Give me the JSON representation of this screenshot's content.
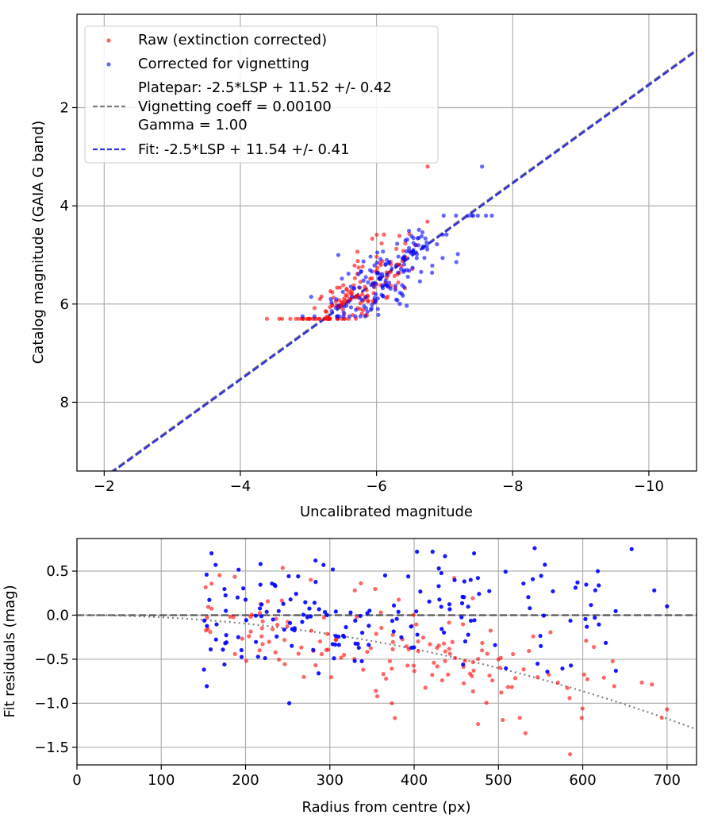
{
  "chart_data": [
    {
      "type": "scatter",
      "xlabel": "Uncalibrated magnitude",
      "ylabel": "Catalog magnitude (GAIA G band)",
      "xlim": [
        -1.6,
        -10.7
      ],
      "ylim": [
        9.4,
        0.1
      ],
      "x_ticks": [
        -2,
        -4,
        -6,
        -8,
        -10
      ],
      "x_tick_labels": [
        "−2",
        "−4",
        "−6",
        "−8",
        "−10"
      ],
      "y_ticks": [
        2,
        4,
        6,
        8
      ],
      "y_tick_labels": [
        "2",
        "4",
        "6",
        "8"
      ],
      "grid": true,
      "legend_position": "upper-left",
      "legend": [
        {
          "label": "Raw (extinction corrected)",
          "kind": "marker",
          "color": "#ff0000"
        },
        {
          "label": "Corrected for vignetting",
          "kind": "marker",
          "color": "#0000ff"
        },
        {
          "label": "Platepar: -2.5*LSP + 11.52 +/- 0.42",
          "label2": "Vignetting coeff = 0.00100",
          "label3": "Gamma = 1.00",
          "kind": "dashed",
          "color": "#808080"
        },
        {
          "label": "Fit: -2.5*LSP + 11.54 +/- 0.41",
          "kind": "dashed",
          "color": "#3333dd"
        }
      ],
      "lines": [
        {
          "name": "Platepar",
          "slope": 1.0,
          "intercept": 11.52,
          "color": "#808080",
          "style": "dashed"
        },
        {
          "name": "Fit",
          "slope": 1.0,
          "intercept": 11.54,
          "color": "#3333dd",
          "style": "dashed"
        }
      ],
      "series": [
        {
          "name": "Raw (extinction corrected)",
          "color": "#ff0000",
          "cloud": {
            "n": 160,
            "seed": 7,
            "x_mean": -5.7,
            "x_sd": 0.42,
            "y_from_x": 11.5,
            "y_sd": 0.32,
            "y_min": 4.1,
            "y_max": 6.3
          },
          "extra_points": [
            [
              -6.75,
              3.2
            ]
          ]
        },
        {
          "name": "Corrected for vignetting",
          "color": "#0000ff",
          "cloud": {
            "n": 170,
            "seed": 21,
            "x_mean": -6.15,
            "x_sd": 0.5,
            "y_from_x": 11.55,
            "y_sd": 0.36,
            "y_min": 4.2,
            "y_max": 6.25
          },
          "extra_points": [
            [
              -7.55,
              3.2
            ]
          ]
        }
      ]
    },
    {
      "type": "scatter",
      "xlabel": "Radius from centre (px)",
      "ylabel": "Fit residuals (mag)",
      "xlim": [
        0,
        735
      ],
      "ylim": [
        -1.7,
        0.87
      ],
      "x_ticks": [
        0,
        100,
        200,
        300,
        400,
        500,
        600,
        700
      ],
      "x_tick_labels": [
        "0",
        "100",
        "200",
        "300",
        "400",
        "500",
        "600",
        "700"
      ],
      "y_ticks": [
        0.5,
        0.0,
        -0.5,
        -1.0,
        -1.5
      ],
      "y_tick_labels": [
        "0.5",
        "0.0",
        "−0.5",
        "−1.0",
        "−1.5"
      ],
      "grid": true,
      "lines": [
        {
          "name": "zero",
          "kind": "hline",
          "y": 0.0,
          "color": "#555555",
          "style": "dashed"
        },
        {
          "name": "vignetting",
          "kind": "curve",
          "coeff": 0.001,
          "color": "#808080",
          "style": "dotted"
        }
      ],
      "series": [
        {
          "name": "Raw (extinction corrected)",
          "color": "#ff0000",
          "cloud": {
            "n": 160,
            "seed": 7,
            "r_min": 150,
            "r_max": 700,
            "trend": -0.0016,
            "offset": 0.0,
            "sd": 0.3
          },
          "extra_points": [
            [
              585,
              -1.58
            ],
            [
              532,
              -1.34
            ],
            [
              700,
              -1.07
            ]
          ]
        },
        {
          "name": "Corrected for vignetting",
          "color": "#0000ff",
          "cloud": {
            "n": 170,
            "seed": 21,
            "r_min": 150,
            "r_max": 700,
            "trend": 0.0,
            "offset": 0.0,
            "sd": 0.33
          },
          "extra_points": [
            [
              543,
              0.76
            ],
            [
              658,
              0.75
            ],
            [
              283,
              0.62
            ],
            [
              700,
              0.1
            ]
          ]
        }
      ]
    }
  ]
}
